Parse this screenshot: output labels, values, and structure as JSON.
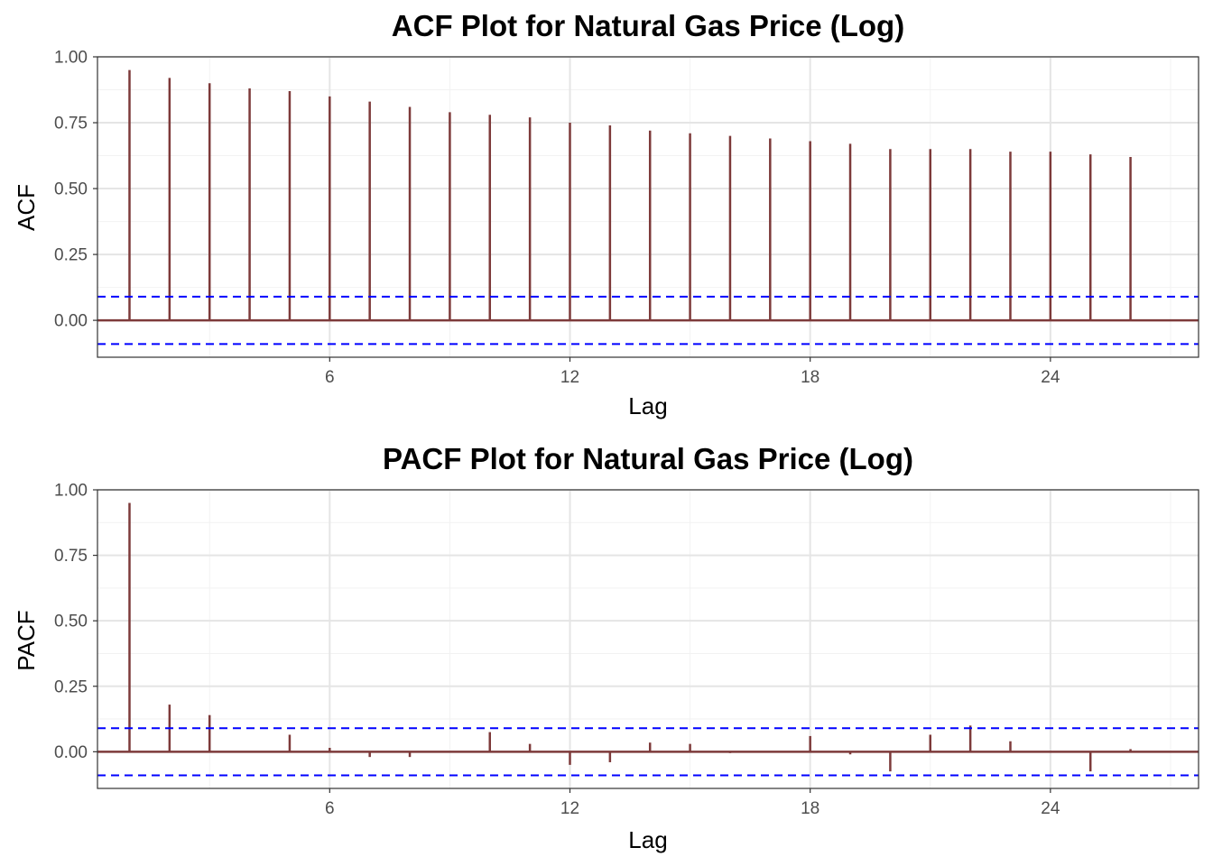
{
  "chart_data": [
    {
      "type": "bar",
      "title": "ACF Plot for Natural Gas Price (Log)",
      "xlabel": "Lag",
      "ylabel": "ACF",
      "x_ticks": [
        6,
        12,
        18,
        24
      ],
      "y_ticks": [
        "0.00",
        "0.25",
        "0.50",
        "0.75",
        "1.00"
      ],
      "xlim": [
        0.2,
        27.7
      ],
      "ylim": [
        -0.14,
        1.0
      ],
      "grid": true,
      "confidence_bound": 0.09,
      "lags": [
        1,
        2,
        3,
        4,
        5,
        6,
        7,
        8,
        9,
        10,
        11,
        12,
        13,
        14,
        15,
        16,
        17,
        18,
        19,
        20,
        21,
        22,
        23,
        24,
        25,
        26
      ],
      "values": [
        0.95,
        0.92,
        0.9,
        0.88,
        0.87,
        0.85,
        0.83,
        0.81,
        0.79,
        0.78,
        0.77,
        0.75,
        0.74,
        0.72,
        0.71,
        0.7,
        0.69,
        0.68,
        0.67,
        0.65,
        0.65,
        0.65,
        0.64,
        0.64,
        0.63,
        0.62
      ],
      "bar_color": "#7d3a3a",
      "bound_color": "#0000ff"
    },
    {
      "type": "bar",
      "title": "PACF Plot for Natural Gas Price (Log)",
      "xlabel": "Lag",
      "ylabel": "PACF",
      "x_ticks": [
        6,
        12,
        18,
        24
      ],
      "y_ticks": [
        "0.00",
        "0.25",
        "0.50",
        "0.75",
        "1.00"
      ],
      "xlim": [
        0.2,
        27.7
      ],
      "ylim": [
        -0.14,
        1.0
      ],
      "grid": true,
      "confidence_bound": 0.09,
      "lags": [
        1,
        2,
        3,
        4,
        5,
        6,
        7,
        8,
        9,
        10,
        11,
        12,
        13,
        14,
        15,
        16,
        17,
        18,
        19,
        20,
        21,
        22,
        23,
        24,
        25,
        26
      ],
      "values": [
        0.95,
        0.18,
        0.14,
        0.0,
        0.065,
        0.015,
        -0.02,
        -0.02,
        0.0,
        0.075,
        0.03,
        -0.05,
        -0.04,
        0.035,
        0.03,
        -0.005,
        0.0,
        0.06,
        -0.01,
        -0.075,
        0.065,
        0.1,
        0.04,
        0.0,
        -0.075,
        0.01
      ],
      "bar_color": "#7d3a3a",
      "bound_color": "#0000ff"
    }
  ]
}
